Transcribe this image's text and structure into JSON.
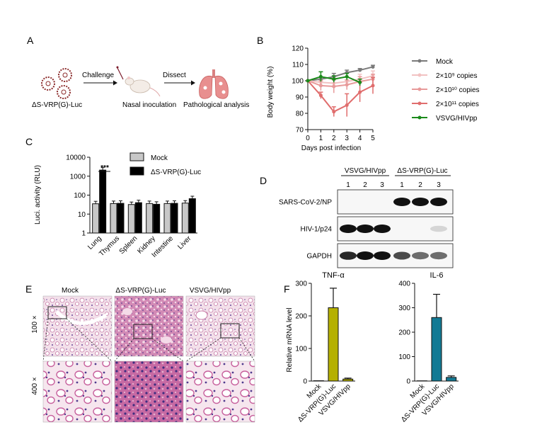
{
  "panel_letters": {
    "a": "A",
    "b": "B",
    "c": "C",
    "d": "D",
    "e": "E",
    "f": "F"
  },
  "schematic": {
    "label_virus": "ΔS-VRP(G)-Luc",
    "label_challenge": "Challenge",
    "label_nasal": "Nasal inoculation",
    "label_dissect": "Dissect",
    "label_pathology": "Pathological analysis"
  },
  "body_weight": {
    "ylabel": "Body weight (%)",
    "xlabel": "Days post infection",
    "legend_suffix": "copies",
    "colors": {
      "Mock": "#7a7a7a",
      "s1": "#f2c2c2",
      "s2": "#e89a9a",
      "s3": "#e06d6d",
      "VSVG": "#1a8a1a"
    }
  },
  "luci": {
    "ylabel": "Luci. activity (RLU)",
    "significance": "***",
    "colors": {
      "mock": "#c8c8c8",
      "dvrp": "#000000"
    }
  },
  "western": {
    "group1": "VSVG/HIVpp",
    "group2": "ΔS-VRP(G)-Luc",
    "lanes": [
      "1",
      "2",
      "3",
      "1",
      "2",
      "3"
    ],
    "rows": [
      "SARS-CoV-2/NP",
      "HIV-1/p24",
      "GAPDH"
    ]
  },
  "histology": {
    "columns": [
      "Mock",
      "ΔS-VRP(G)-Luc",
      "VSVG/HIVpp"
    ],
    "row_labels": [
      "100 ×",
      "400 ×"
    ]
  },
  "mrna": {
    "ylabel": "Relative mRNA level",
    "colors": {
      "tnf": "#b5b000",
      "il6": "#137a94"
    }
  },
  "chart_data": [
    {
      "type": "line",
      "xlabel": "Days post infection",
      "ylabel": "Body weight (%)",
      "x": [
        0,
        1,
        2,
        3,
        4,
        5
      ],
      "xlim": [
        0,
        5
      ],
      "ylim": [
        70,
        120
      ],
      "yticks": [
        70,
        80,
        90,
        100,
        110,
        120
      ],
      "series": [
        {
          "name": "Mock",
          "values": [
            100,
            101,
            102.5,
            105,
            106.5,
            108.5
          ]
        },
        {
          "name": "2×10⁹ copies",
          "values": [
            100,
            99,
            98.5,
            99.5,
            101,
            103
          ]
        },
        {
          "name": "2×10¹⁰ copies",
          "values": [
            100,
            97,
            96.5,
            97.5,
            99.5,
            101
          ]
        },
        {
          "name": "2×10¹¹ copies",
          "values": [
            100,
            91,
            81,
            85,
            93,
            97
          ]
        },
        {
          "name": "VSVG/HIVpp",
          "values": [
            100,
            102.5,
            101,
            102.5,
            99,
            null
          ]
        }
      ],
      "legend_position": "right"
    },
    {
      "type": "bar",
      "ylabel": "Luci. activity (RLU)",
      "yscale": "log",
      "ylim": [
        1,
        10000
      ],
      "yticks": [
        1,
        10,
        100,
        1000,
        10000
      ],
      "categories": [
        "Lung",
        "Thymus",
        "Spleen",
        "Kidney",
        "Intestine",
        "Liver"
      ],
      "series": [
        {
          "name": "Mock",
          "values": [
            35,
            36,
            32,
            36,
            36,
            38
          ]
        },
        {
          "name": "ΔS-VRP(G)-Luc",
          "values": [
            2100,
            37,
            40,
            33,
            37,
            65
          ]
        }
      ],
      "legend_position": "top-right"
    },
    {
      "type": "bar",
      "title": "TNF-α",
      "ylabel": "Relative mRNA level",
      "ylim": [
        0,
        300
      ],
      "yticks": [
        0,
        100,
        200,
        300
      ],
      "categories": [
        "Mock",
        "ΔS-VRP(G)-Luc",
        "VSVG/HIVpp"
      ],
      "values": [
        1,
        225,
        6
      ],
      "errors": [
        0,
        60,
        3
      ]
    },
    {
      "type": "bar",
      "title": "IL-6",
      "ylim": [
        0,
        400
      ],
      "yticks": [
        0,
        100,
        200,
        300,
        400
      ],
      "categories": [
        "Mock",
        "ΔS-VRP(G)-Luc",
        "VSVG/HIVpp"
      ],
      "values": [
        1,
        260,
        15
      ],
      "errors": [
        0,
        95,
        6
      ]
    }
  ]
}
